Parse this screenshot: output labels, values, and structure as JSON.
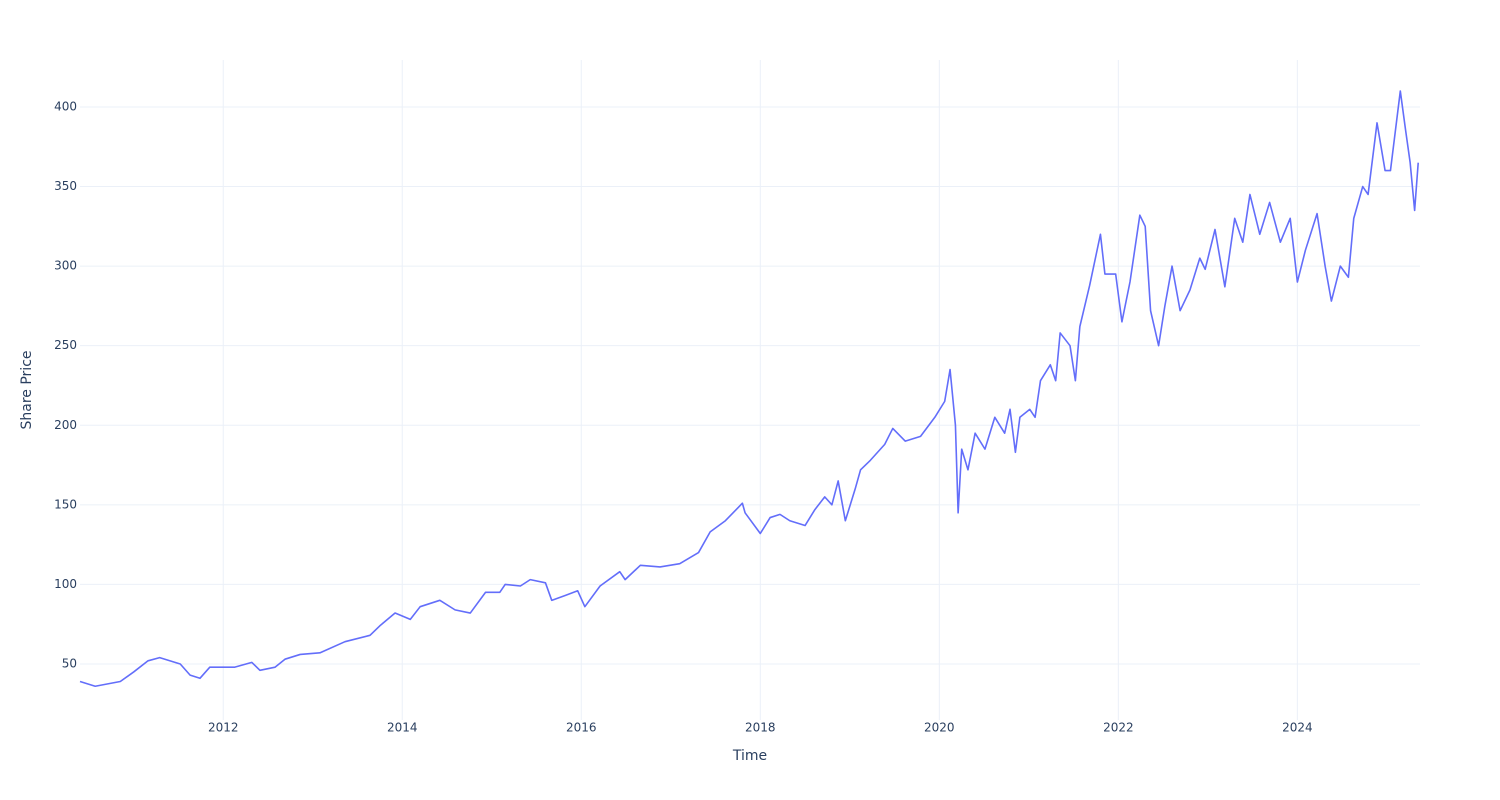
{
  "chart_data": {
    "type": "line",
    "x_label": "Time",
    "y_label": "Share Price",
    "x": [
      2010.4,
      2010.57,
      2010.85,
      2011.0,
      2011.16,
      2011.29,
      2011.52,
      2011.63,
      2011.74,
      2011.85,
      2012.13,
      2012.32,
      2012.41,
      2012.58,
      2012.69,
      2012.86,
      2013.08,
      2013.36,
      2013.64,
      2013.75,
      2013.92,
      2014.09,
      2014.2,
      2014.42,
      2014.59,
      2014.76,
      2014.93,
      2015.09,
      2015.15,
      2015.32,
      2015.43,
      2015.6,
      2015.67,
      2015.82,
      2015.96,
      2016.04,
      2016.21,
      2016.43,
      2016.49,
      2016.66,
      2016.88,
      2017.1,
      2017.31,
      2017.44,
      2017.61,
      2017.8,
      2017.83,
      2018.0,
      2018.11,
      2018.22,
      2018.33,
      2018.5,
      2018.61,
      2018.72,
      2018.8,
      2018.87,
      2018.95,
      2019.06,
      2019.12,
      2019.23,
      2019.39,
      2019.48,
      2019.62,
      2019.79,
      2019.95,
      2020.06,
      2020.12,
      2020.18,
      2020.21,
      2020.25,
      2020.32,
      2020.4,
      2020.51,
      2020.62,
      2020.73,
      2020.79,
      2020.85,
      2020.9,
      2021.01,
      2021.07,
      2021.13,
      2021.24,
      2021.3,
      2021.35,
      2021.46,
      2021.52,
      2021.57,
      2021.68,
      2021.8,
      2021.85,
      2021.97,
      2022.04,
      2022.13,
      2022.24,
      2022.3,
      2022.36,
      2022.45,
      2022.52,
      2022.6,
      2022.69,
      2022.8,
      2022.91,
      2022.97,
      2023.08,
      2023.19,
      2023.3,
      2023.39,
      2023.47,
      2023.58,
      2023.69,
      2023.81,
      2023.92,
      2024.0,
      2024.09,
      2024.22,
      2024.31,
      2024.38,
      2024.48,
      2024.57,
      2024.63,
      2024.73,
      2024.79,
      2024.89,
      2024.98,
      2025.04,
      2025.15,
      2025.21,
      2025.26,
      2025.31,
      2025.35
    ],
    "values": [
      39,
      36,
      39,
      45,
      52,
      54,
      50,
      43,
      41,
      48,
      48,
      51,
      46,
      48,
      53,
      56,
      57,
      64,
      68,
      74,
      82,
      78,
      86,
      90,
      84,
      82,
      95,
      95,
      100,
      99,
      103,
      101,
      90,
      93,
      96,
      86,
      99,
      108,
      103,
      112,
      111,
      113,
      120,
      133,
      140,
      151,
      145,
      132,
      142,
      144,
      140,
      137,
      147,
      155,
      150,
      165,
      140,
      160,
      172,
      178,
      188,
      198,
      190,
      193,
      205,
      215,
      235,
      200,
      145,
      185,
      172,
      195,
      185,
      205,
      195,
      210,
      183,
      205,
      210,
      205,
      228,
      238,
      228,
      258,
      250,
      228,
      262,
      288,
      320,
      295,
      295,
      265,
      290,
      332,
      325,
      272,
      250,
      275,
      300,
      272,
      285,
      305,
      298,
      323,
      287,
      330,
      315,
      345,
      320,
      340,
      315,
      330,
      290,
      310,
      333,
      300,
      278,
      300,
      293,
      330,
      350,
      345,
      390,
      360,
      360,
      410,
      385,
      365,
      335,
      365
    ],
    "color": "#636efa",
    "xlim": [
      2010.4,
      2025.37
    ],
    "xticks": [
      2012,
      2014,
      2016,
      2018,
      2020,
      2022,
      2024
    ],
    "ylim": [
      14.8,
      429.5
    ],
    "yticks": [
      50,
      100,
      150,
      200,
      250,
      300,
      350,
      400
    ],
    "grid": true
  }
}
